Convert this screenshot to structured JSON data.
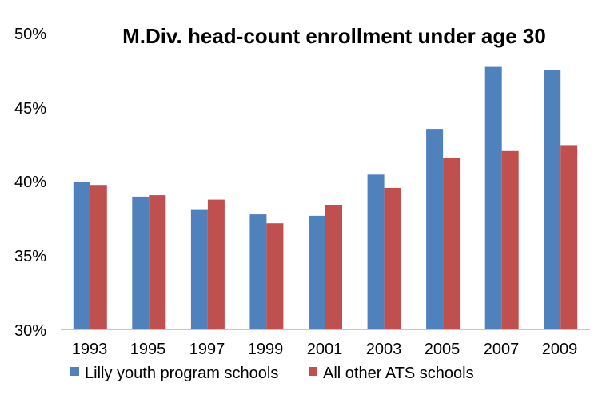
{
  "chart_data": {
    "type": "bar",
    "title": "M.Div. head-count enrollment under age 30",
    "xlabel": "",
    "ylabel": "",
    "ylim": [
      0.3,
      0.5
    ],
    "yticks": [
      0.3,
      0.35,
      0.4,
      0.45,
      0.5
    ],
    "ytick_labels": [
      "30%",
      "35%",
      "40%",
      "45%",
      "50%"
    ],
    "categories": [
      "1993",
      "1995",
      "1997",
      "1999",
      "2001",
      "2003",
      "2005",
      "2007",
      "2009"
    ],
    "series": [
      {
        "name": "Lilly youth program schools",
        "color": "#4F81BD",
        "values": [
          0.4,
          0.39,
          0.381,
          0.378,
          0.377,
          0.405,
          0.436,
          0.478,
          0.476
        ]
      },
      {
        "name": "All other ATS schools",
        "color": "#C0504D",
        "values": [
          0.398,
          0.391,
          0.388,
          0.372,
          0.384,
          0.396,
          0.416,
          0.421,
          0.425
        ]
      }
    ],
    "grid": false,
    "legend_position": "bottom-left"
  }
}
